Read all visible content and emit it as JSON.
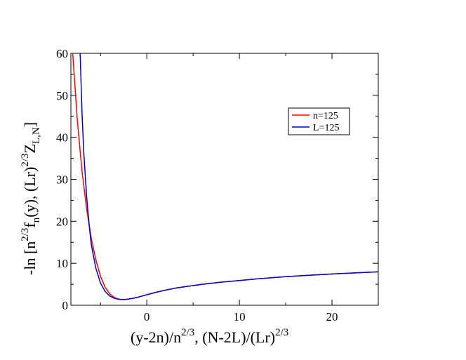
{
  "chart_data": {
    "type": "line",
    "xlabel": {
      "part1": "(y-2n)/n",
      "part1_sup": "2/3",
      "part2": ", (N-2L)/(Lr)",
      "part2_sup": "2/3"
    },
    "ylabel": {
      "a": "-ln [n",
      "a_sup": "2/3",
      "b": "f",
      "b_sub": "n",
      "c": "(y), (Lr)",
      "c_sup": "2/3",
      "d": "Z",
      "d_sub": "L,N",
      "e": "]"
    },
    "xlim": [
      -8.2,
      25
    ],
    "ylim": [
      0,
      60
    ],
    "x_ticks": [
      0,
      10,
      20
    ],
    "x_tick_labels": [
      "0",
      "10",
      "20"
    ],
    "y_ticks": [
      0,
      10,
      20,
      30,
      40,
      50,
      60
    ],
    "y_tick_labels": [
      "0",
      "10",
      "20",
      "30",
      "40",
      "50",
      "60"
    ],
    "grid": false,
    "legend_position": "upper-right",
    "series": [
      {
        "name": "n=125",
        "color": "#ff0000",
        "x": [
          -8.0,
          -7.5,
          -7.0,
          -6.5,
          -6.0,
          -5.5,
          -5.0,
          -4.5,
          -4.0,
          -3.5,
          -3.0,
          -2.5,
          -2.0,
          -1.5,
          -1.0,
          -0.5,
          0.0,
          1.0,
          2.0,
          3.0,
          4.0,
          6.0,
          8.0,
          10.0,
          12.0,
          15.0,
          18.0,
          21.0,
          25.0
        ],
        "y": [
          60.0,
          44.0,
          32.0,
          23.0,
          16.0,
          10.8,
          6.9,
          4.3,
          2.7,
          1.85,
          1.45,
          1.35,
          1.45,
          1.65,
          1.9,
          2.2,
          2.5,
          3.1,
          3.6,
          4.05,
          4.4,
          5.0,
          5.5,
          5.9,
          6.3,
          6.8,
          7.2,
          7.55,
          7.95
        ]
      },
      {
        "name": "L=125",
        "color": "#0000cc",
        "x": [
          -7.2,
          -7.0,
          -6.8,
          -6.5,
          -6.2,
          -6.0,
          -5.5,
          -5.0,
          -4.5,
          -4.0,
          -3.5,
          -3.0,
          -2.5,
          -2.0,
          -1.5,
          -1.0,
          -0.5,
          0.0,
          1.0,
          2.0,
          3.0,
          4.0,
          6.0,
          8.0,
          10.0,
          12.0,
          15.0,
          18.0,
          21.0,
          25.0
        ],
        "y": [
          60.0,
          46.0,
          36.0,
          26.0,
          18.5,
          14.5,
          8.8,
          5.3,
          3.3,
          2.2,
          1.65,
          1.4,
          1.35,
          1.45,
          1.65,
          1.9,
          2.2,
          2.5,
          3.1,
          3.6,
          4.05,
          4.4,
          5.0,
          5.5,
          5.9,
          6.3,
          6.8,
          7.2,
          7.55,
          7.95
        ]
      }
    ]
  }
}
